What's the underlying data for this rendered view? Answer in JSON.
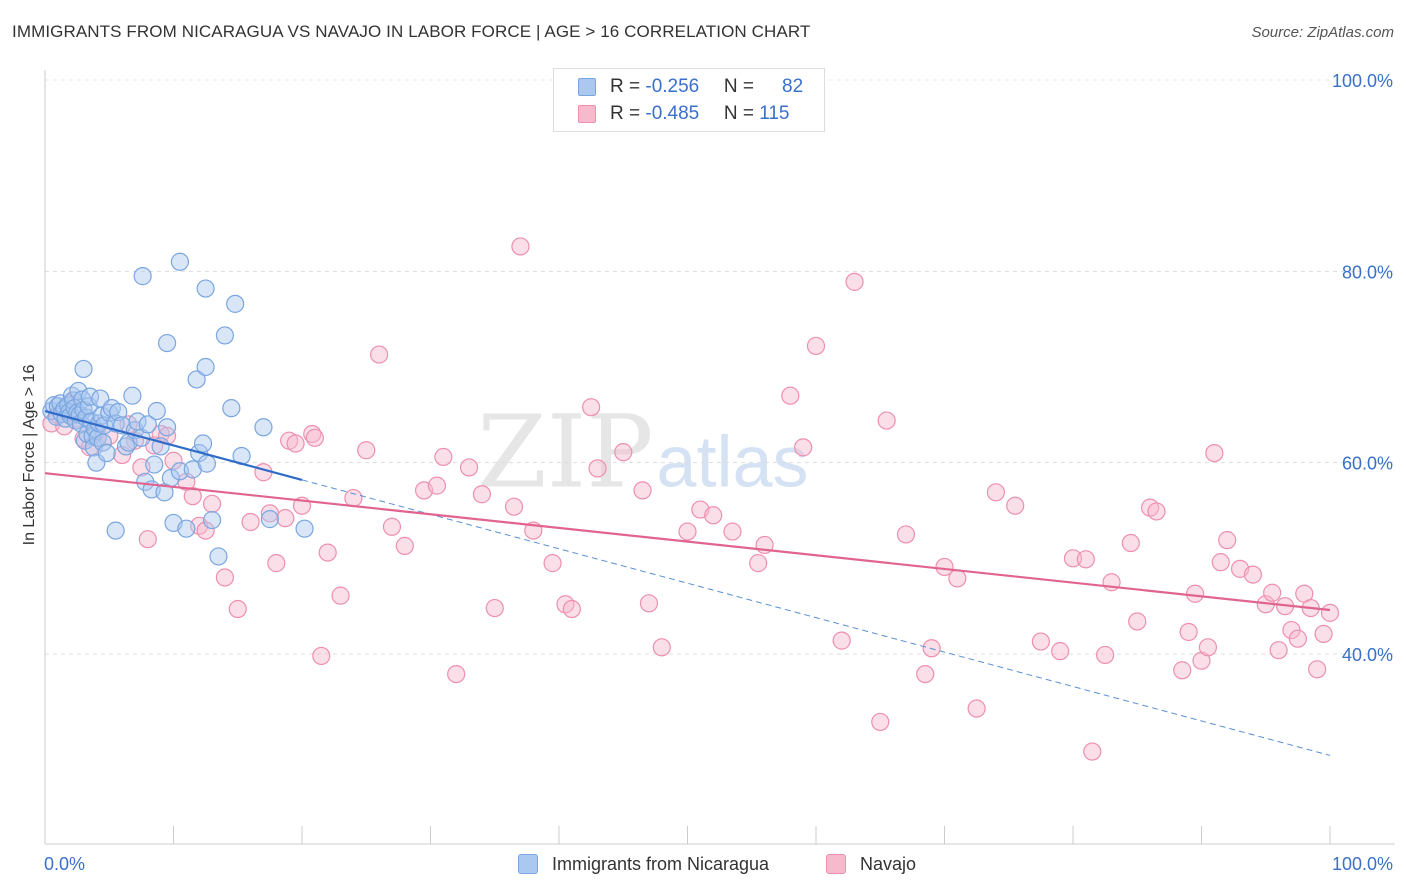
{
  "title": "IMMIGRANTS FROM NICARAGUA VS NAVAJO IN LABOR FORCE | AGE > 16 CORRELATION CHART",
  "source": "Source: ZipAtlas.com",
  "watermark": {
    "zip": "ZIP",
    "atlas": "atlas"
  },
  "stats": [
    {
      "r_label": "R = ",
      "r_value": "-0.256",
      "n_label": "N = ",
      "n_value": "82",
      "color": "#aac8f0",
      "border": "#7aa6e0"
    },
    {
      "r_label": "R = ",
      "r_value": "-0.485",
      "n_label": "N = ",
      "n_value": "115",
      "color": "#f7b9cc",
      "border": "#ee8fae"
    }
  ],
  "legend": [
    {
      "label": "Immigrants from Nicaragua",
      "color": "#aac8f0",
      "border": "#7aa6e0"
    },
    {
      "label": "Navajo",
      "color": "#f7b9cc",
      "border": "#ee8fae"
    }
  ],
  "chart_data": {
    "type": "scatter",
    "title": "IMMIGRANTS FROM NICARAGUA VS NAVAJO IN LABOR FORCE | AGE > 16 CORRELATION CHART",
    "xlabel": "",
    "ylabel": "In Labor Force | Age > 16",
    "xlim": [
      0,
      100
    ],
    "ylim": [
      20,
      104
    ],
    "x_tick_labels": [
      {
        "value": 0,
        "label": "0.0%"
      },
      {
        "value": 100,
        "label": "100.0%"
      }
    ],
    "y_tick_labels": [
      {
        "value": 100,
        "label": "100.0%"
      },
      {
        "value": 80,
        "label": "80.0%"
      },
      {
        "value": 60,
        "label": "60.0%"
      },
      {
        "value": 40,
        "label": "40.0%"
      }
    ],
    "grid": true,
    "series": [
      {
        "name": "Immigrants from Nicaragua",
        "color": "#7aa6e0",
        "fill": "#aac8f0",
        "trendline": {
          "x": [
            0,
            20
          ],
          "y": [
            65.4,
            58.2
          ],
          "extended_to": [
            100,
            29.4
          ]
        },
        "points": [
          [
            0.5,
            65.4
          ],
          [
            0.7,
            66.0
          ],
          [
            0.9,
            64.8
          ],
          [
            1.0,
            65.9
          ],
          [
            1.2,
            66.2
          ],
          [
            1.3,
            65.1
          ],
          [
            1.5,
            65.6
          ],
          [
            1.6,
            64.6
          ],
          [
            1.8,
            66.0
          ],
          [
            1.9,
            65.3
          ],
          [
            2.0,
            64.9
          ],
          [
            2.1,
            67.0
          ],
          [
            2.2,
            66.5
          ],
          [
            2.3,
            65.7
          ],
          [
            2.4,
            64.4
          ],
          [
            2.5,
            65.2
          ],
          [
            2.6,
            67.5
          ],
          [
            2.7,
            65.0
          ],
          [
            2.8,
            64.1
          ],
          [
            2.9,
            66.6
          ],
          [
            3.0,
            65.5
          ],
          [
            3.1,
            62.3
          ],
          [
            3.2,
            64.7
          ],
          [
            3.3,
            63.0
          ],
          [
            3.4,
            65.9
          ],
          [
            3.5,
            66.9
          ],
          [
            3.6,
            64.3
          ],
          [
            3.7,
            62.8
          ],
          [
            3.8,
            61.6
          ],
          [
            3.9,
            63.5
          ],
          [
            4.0,
            60.0
          ],
          [
            4.1,
            62.6
          ],
          [
            4.2,
            64.1
          ],
          [
            4.3,
            66.7
          ],
          [
            4.4,
            64.9
          ],
          [
            4.5,
            62.1
          ],
          [
            4.6,
            63.9
          ],
          [
            4.8,
            61.0
          ],
          [
            5.0,
            65.2
          ],
          [
            5.2,
            65.7
          ],
          [
            5.5,
            64.1
          ],
          [
            5.7,
            65.3
          ],
          [
            6.0,
            63.9
          ],
          [
            6.3,
            61.7
          ],
          [
            6.5,
            62.1
          ],
          [
            6.8,
            67.0
          ],
          [
            7.0,
            63.4
          ],
          [
            7.2,
            64.3
          ],
          [
            7.5,
            62.6
          ],
          [
            7.8,
            58.0
          ],
          [
            8.0,
            64.0
          ],
          [
            8.3,
            57.2
          ],
          [
            8.5,
            59.8
          ],
          [
            8.7,
            65.4
          ],
          [
            9.0,
            61.7
          ],
          [
            9.3,
            56.9
          ],
          [
            9.5,
            63.7
          ],
          [
            9.8,
            58.4
          ],
          [
            10.0,
            53.7
          ],
          [
            10.5,
            59.1
          ],
          [
            11.0,
            53.1
          ],
          [
            11.5,
            59.3
          ],
          [
            12.0,
            61.0
          ],
          [
            12.3,
            62.0
          ],
          [
            12.6,
            59.9
          ],
          [
            13.0,
            54.0
          ],
          [
            13.5,
            50.2
          ],
          [
            14.0,
            73.3
          ],
          [
            14.5,
            65.7
          ],
          [
            15.3,
            60.7
          ],
          [
            17.0,
            63.7
          ],
          [
            17.5,
            54.1
          ],
          [
            20.2,
            53.1
          ],
          [
            3.0,
            69.8
          ],
          [
            5.5,
            52.9
          ],
          [
            7.6,
            79.5
          ],
          [
            9.5,
            72.5
          ],
          [
            10.5,
            81.0
          ],
          [
            12.5,
            78.2
          ],
          [
            14.8,
            76.6
          ],
          [
            11.8,
            68.7
          ],
          [
            12.5,
            70.0
          ]
        ]
      },
      {
        "name": "Navajo",
        "color": "#ee8fae",
        "fill": "#f7b9cc",
        "trendline": {
          "x": [
            0,
            100
          ],
          "y": [
            58.9,
            44.6
          ]
        },
        "points": [
          [
            0.5,
            64.1
          ],
          [
            1.0,
            65.0
          ],
          [
            1.5,
            63.8
          ],
          [
            2.0,
            66.2
          ],
          [
            2.5,
            64.6
          ],
          [
            3.0,
            62.5
          ],
          [
            3.5,
            61.6
          ],
          [
            4.0,
            63.3
          ],
          [
            5.0,
            62.8
          ],
          [
            6.0,
            60.8
          ],
          [
            6.5,
            64.0
          ],
          [
            7.0,
            62.3
          ],
          [
            7.5,
            59.5
          ],
          [
            8.0,
            52.0
          ],
          [
            8.5,
            61.8
          ],
          [
            9.0,
            63.0
          ],
          [
            9.5,
            62.8
          ],
          [
            10.0,
            60.2
          ],
          [
            11.0,
            58.0
          ],
          [
            11.5,
            56.5
          ],
          [
            12.0,
            53.4
          ],
          [
            12.5,
            52.9
          ],
          [
            13.0,
            55.7
          ],
          [
            14.0,
            48.0
          ],
          [
            15.0,
            44.7
          ],
          [
            16.0,
            53.8
          ],
          [
            17.0,
            59.0
          ],
          [
            17.5,
            54.7
          ],
          [
            18.0,
            49.5
          ],
          [
            18.7,
            54.2
          ],
          [
            19.0,
            62.3
          ],
          [
            19.5,
            62.0
          ],
          [
            20.0,
            55.5
          ],
          [
            20.8,
            63.0
          ],
          [
            21.0,
            62.6
          ],
          [
            21.5,
            39.8
          ],
          [
            22.0,
            50.6
          ],
          [
            23.0,
            46.1
          ],
          [
            24.0,
            56.3
          ],
          [
            25.0,
            61.3
          ],
          [
            26.0,
            71.3
          ],
          [
            27.0,
            53.3
          ],
          [
            28.0,
            51.3
          ],
          [
            29.5,
            57.1
          ],
          [
            30.5,
            57.6
          ],
          [
            31.0,
            60.6
          ],
          [
            32.0,
            37.9
          ],
          [
            33.0,
            59.5
          ],
          [
            34.0,
            56.7
          ],
          [
            35.0,
            44.8
          ],
          [
            36.5,
            55.4
          ],
          [
            37.0,
            82.6
          ],
          [
            38.0,
            52.9
          ],
          [
            39.5,
            49.5
          ],
          [
            40.5,
            45.2
          ],
          [
            41.0,
            44.7
          ],
          [
            42.5,
            65.8
          ],
          [
            43.0,
            59.4
          ],
          [
            45.0,
            61.1
          ],
          [
            46.5,
            57.1
          ],
          [
            47.0,
            45.3
          ],
          [
            48.0,
            40.7
          ],
          [
            50.0,
            52.8
          ],
          [
            51.0,
            55.1
          ],
          [
            52.0,
            54.5
          ],
          [
            53.5,
            52.8
          ],
          [
            55.5,
            49.5
          ],
          [
            56.0,
            51.4
          ],
          [
            58.0,
            67.0
          ],
          [
            59.0,
            61.6
          ],
          [
            60.0,
            72.2
          ],
          [
            62.0,
            41.4
          ],
          [
            63.0,
            78.9
          ],
          [
            65.0,
            32.9
          ],
          [
            65.5,
            64.4
          ],
          [
            67.0,
            52.5
          ],
          [
            68.5,
            37.9
          ],
          [
            69.0,
            40.6
          ],
          [
            70.0,
            49.1
          ],
          [
            71.0,
            47.9
          ],
          [
            72.5,
            34.3
          ],
          [
            74.0,
            56.9
          ],
          [
            75.5,
            55.5
          ],
          [
            77.5,
            41.3
          ],
          [
            79.0,
            40.3
          ],
          [
            80.0,
            50.0
          ],
          [
            81.0,
            49.9
          ],
          [
            81.5,
            29.8
          ],
          [
            82.5,
            39.9
          ],
          [
            83.0,
            47.5
          ],
          [
            84.5,
            51.6
          ],
          [
            85.0,
            43.4
          ],
          [
            86.0,
            55.3
          ],
          [
            86.5,
            54.9
          ],
          [
            88.5,
            38.3
          ],
          [
            89.0,
            42.3
          ],
          [
            89.5,
            46.3
          ],
          [
            90.0,
            39.3
          ],
          [
            90.5,
            40.7
          ],
          [
            91.0,
            61.0
          ],
          [
            91.5,
            49.6
          ],
          [
            92.0,
            51.9
          ],
          [
            93.0,
            48.9
          ],
          [
            94.0,
            48.3
          ],
          [
            95.0,
            45.2
          ],
          [
            95.5,
            46.4
          ],
          [
            96.0,
            40.4
          ],
          [
            96.5,
            45.0
          ],
          [
            97.0,
            42.5
          ],
          [
            97.5,
            41.6
          ],
          [
            98.0,
            46.3
          ],
          [
            98.5,
            44.8
          ],
          [
            99.0,
            38.4
          ],
          [
            99.5,
            42.1
          ],
          [
            100.0,
            44.3
          ]
        ]
      }
    ]
  }
}
